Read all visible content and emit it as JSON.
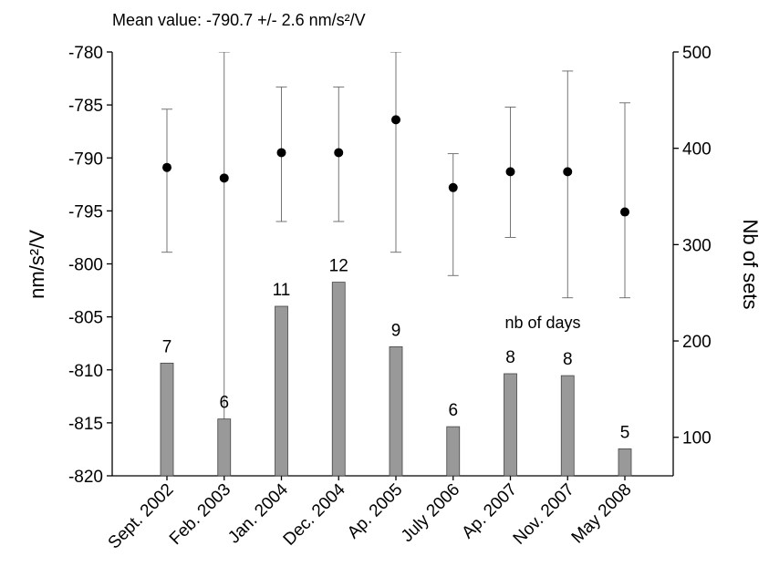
{
  "chart_data": {
    "type": "errorbar_bar",
    "title": "Mean value: -790.7 +/- 2.6 nm/s²/V",
    "y_label": "nm/s²/V",
    "y2_label": "Nb of sets",
    "annotation": "nb of days",
    "categories": [
      "Sept. 2002",
      "Feb. 2003",
      "Jan. 2004",
      "Dec. 2004",
      "Ap. 2005",
      "July 2006",
      "Ap. 2007",
      "Nov. 2007",
      "May 2008"
    ],
    "series": [
      {
        "type": "scatter",
        "color": "#000000",
        "values": [
          -790.9,
          -791.9,
          -789.5,
          -789.5,
          -786.4,
          -792.8,
          -791.3,
          -791.3,
          -795.1
        ],
        "high": [
          -785.4,
          -780,
          -783.3,
          -783.3,
          -780,
          -789.6,
          -785.2,
          -781.8,
          -784.8
        ],
        "low": [
          -798.9,
          -820,
          -796.0,
          -796.0,
          -798.9,
          -801.1,
          -797.5,
          -803.2,
          -803.2
        ]
      },
      {
        "type": "bar",
        "axis": "y2",
        "color": "#999999",
        "values": [
          177,
          119,
          236,
          261,
          194,
          111,
          166,
          164,
          88
        ],
        "value_labels": [
          "7",
          "6",
          "11",
          "12",
          "9",
          "6",
          "8",
          "8",
          "5"
        ]
      }
    ],
    "ylim": [
      -820,
      -780
    ],
    "yticks": [
      -820,
      -815,
      -810,
      -805,
      -800,
      -795,
      -790,
      -785,
      -780
    ],
    "y2lim": [
      60,
      500
    ],
    "y2ticks": [
      100,
      200,
      300,
      400,
      500
    ]
  }
}
